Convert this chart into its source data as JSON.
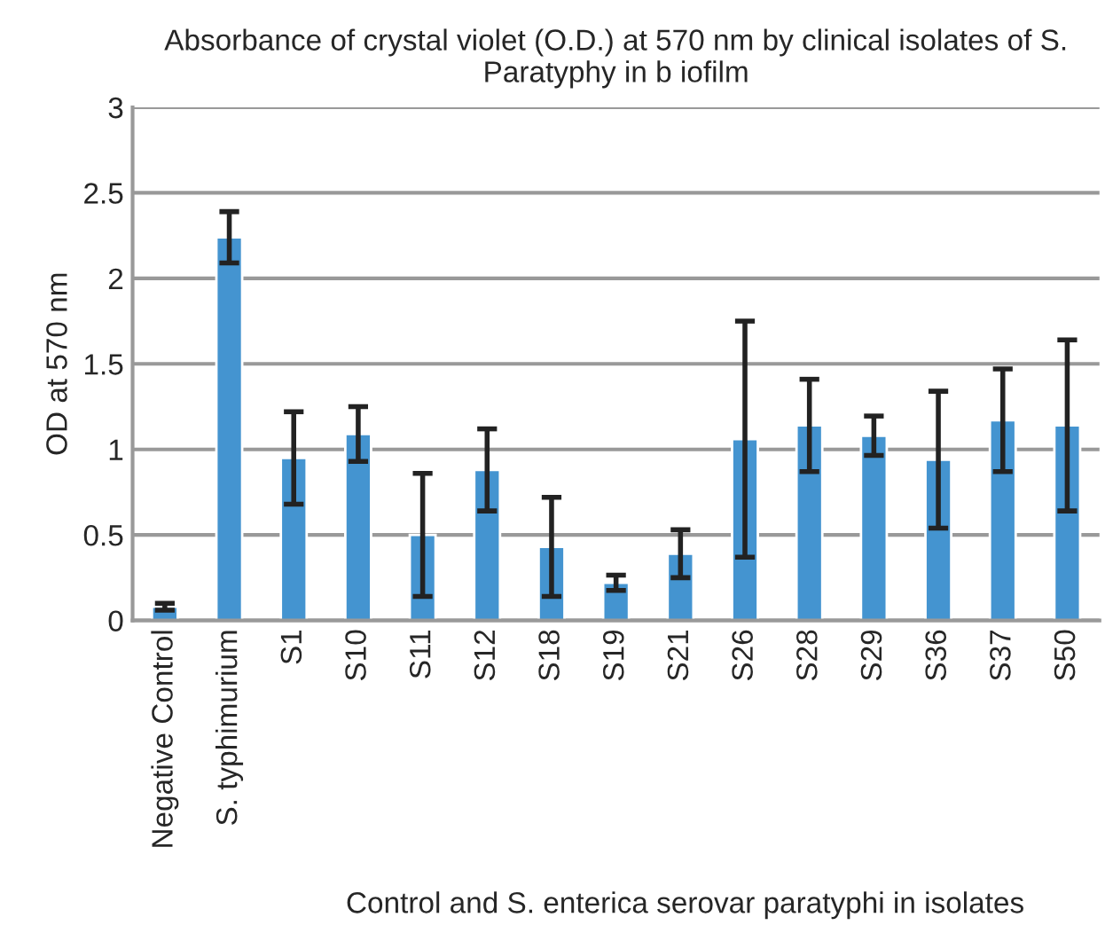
{
  "chart_data": {
    "type": "bar",
    "title": "Absorbance of crystal violet (O.D.) at 570 nm by clinical isolates of S. Paratyphy in b iofilm",
    "xlabel": "Control and S. enterica serovar paratyphi in isolates",
    "ylabel": "OD at 570 nm",
    "categories": [
      "Negative Control",
      "S. typhimurium",
      "S1",
      "S10",
      "S11",
      "S12",
      "S18",
      "S19",
      "S21",
      "S26",
      "S28",
      "S29",
      "S36",
      "S37",
      "S50"
    ],
    "values": [
      0.08,
      2.24,
      0.95,
      1.09,
      0.5,
      0.88,
      0.43,
      0.22,
      0.39,
      1.06,
      1.14,
      1.08,
      0.94,
      1.17,
      1.14
    ],
    "errors": [
      0.02,
      0.15,
      0.27,
      0.16,
      0.36,
      0.24,
      0.29,
      0.045,
      0.14,
      0.69,
      0.27,
      0.115,
      0.4,
      0.3,
      0.5
    ],
    "color": "#4494d0",
    "ylim": [
      0,
      3
    ],
    "yticks": [
      0,
      0.5,
      1,
      1.5,
      2,
      2.5,
      3
    ],
    "grid": "y"
  }
}
